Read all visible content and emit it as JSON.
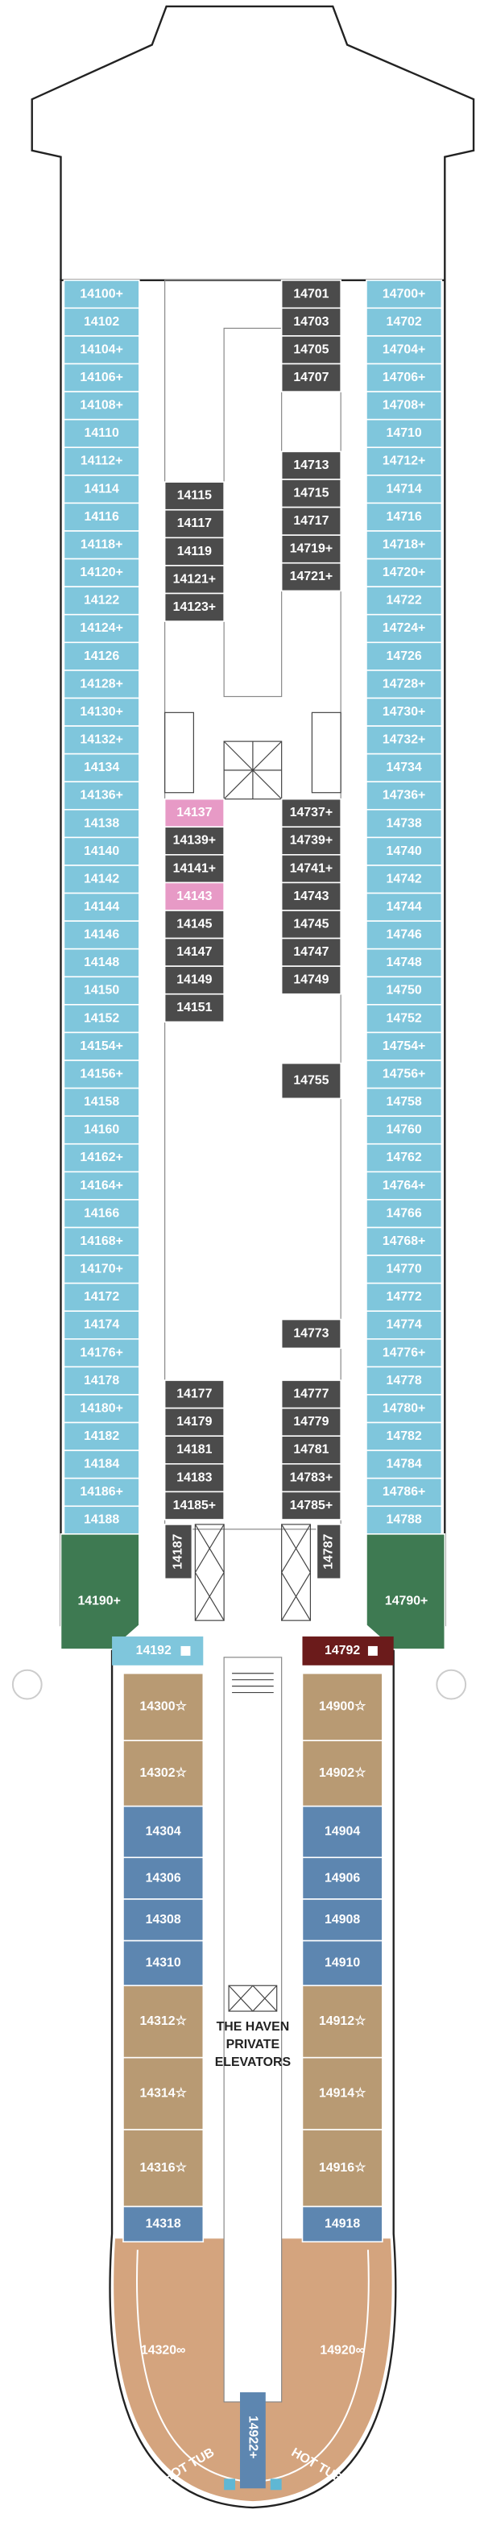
{
  "port_outer": [
    "14100+",
    "14102",
    "14104+",
    "14106+",
    "14108+",
    "14110",
    "14112+",
    "14114",
    "14116",
    "14118+",
    "14120+",
    "14122",
    "14124+",
    "14126",
    "14128+",
    "14130+",
    "14132+",
    "14134",
    "14136+",
    "14138",
    "14140",
    "14142",
    "14144",
    "14146",
    "14148",
    "14150",
    "14152",
    "14154+",
    "14156+",
    "14158",
    "14160",
    "14162+",
    "14164+",
    "14166",
    "14168+",
    "14170+",
    "14172",
    "14174",
    "14176+",
    "14178",
    "14180+",
    "14182",
    "14184",
    "14186+",
    "14188"
  ],
  "starboard_outer": [
    "14700+",
    "14702",
    "14704+",
    "14706+",
    "14708+",
    "14710",
    "14712+",
    "14714",
    "14716",
    "14718+",
    "14720+",
    "14722",
    "14724+",
    "14726",
    "14728+",
    "14730+",
    "14732+",
    "14734",
    "14736+",
    "14738",
    "14740",
    "14742",
    "14744",
    "14746",
    "14748",
    "14750",
    "14752",
    "14754+",
    "14756+",
    "14758",
    "14760",
    "14762",
    "14764+",
    "14766",
    "14768+",
    "14770",
    "14772",
    "14774",
    "14776+",
    "14778",
    "14780+",
    "14782",
    "14784",
    "14786+",
    "14788"
  ],
  "port_inner_1": [
    "14115",
    "14117",
    "14119",
    "14121+",
    "14123+"
  ],
  "port_inner_2": [
    "14137",
    "14139+",
    "14141+",
    "14143",
    "14145",
    "14147",
    "14149",
    "14151"
  ],
  "port_inner_3": [
    "14177",
    "14179",
    "14181",
    "14183",
    "14185+"
  ],
  "port_inner_vertical": "14187",
  "starboard_inner_1": [
    "14701",
    "14703",
    "14705",
    "14707"
  ],
  "starboard_inner_2": [
    "14713",
    "14715",
    "14717",
    "14719+",
    "14721+"
  ],
  "starboard_inner_3": [
    "14737+",
    "14739+",
    "14741+",
    "14743",
    "14745",
    "14747",
    "14749"
  ],
  "starboard_single_1": "14755",
  "starboard_single_2": "14773",
  "starboard_inner_4": [
    "14777",
    "14779",
    "14781",
    "14783+",
    "14785+"
  ],
  "starboard_inner_vertical": "14787",
  "port_corner": "14190+",
  "starboard_corner": "14790+",
  "haven_port_entry": "14192",
  "haven_starboard_entry": "14792",
  "haven_port": [
    "14300☆",
    "14302☆",
    "14304",
    "14306",
    "14308",
    "14310",
    "14312☆",
    "14314☆",
    "14316☆",
    "14318"
  ],
  "haven_starboard": [
    "14900☆",
    "14902☆",
    "14904",
    "14906",
    "14908",
    "14910",
    "14912☆",
    "14914☆",
    "14916☆",
    "14918"
  ],
  "haven_port_aft": "14320∞",
  "haven_starboard_aft": "14920∞",
  "haven_center_aft": "14922+",
  "elevators_label": [
    "THE HAVEN",
    "PRIVATE",
    "ELEVATORS"
  ],
  "hot_tubs": [
    "HOT TUB",
    "HOT TUB"
  ]
}
